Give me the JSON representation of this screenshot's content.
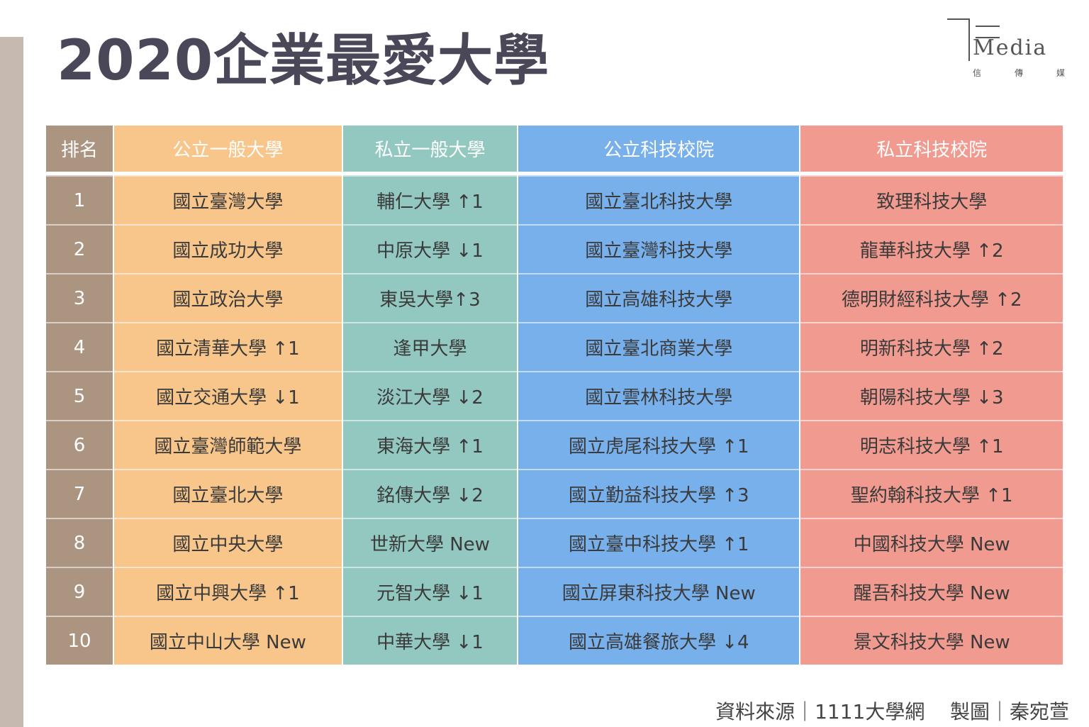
{
  "title": "2020企業最愛大學",
  "logo": {
    "word": "Media",
    "chinese": [
      "信",
      "傳",
      "媒"
    ]
  },
  "colors": {
    "rank": "#ab9480",
    "public_general": "#f8c68a",
    "private_general": "#93c8c0",
    "public_tech": "#78b0ec",
    "private_tech": "#f19b90",
    "title": "#4a4858"
  },
  "table": {
    "headers": [
      "排名",
      "公立一般大學",
      "私立一般大學",
      "公立科技校院",
      "私立科技校院"
    ],
    "rows": [
      [
        "1",
        "國立臺灣大學",
        "輔仁大學 ↑1",
        "國立臺北科技大學",
        "致理科技大學"
      ],
      [
        "2",
        "國立成功大學",
        "中原大學 ↓1",
        "國立臺灣科技大學",
        "龍華科技大學 ↑2"
      ],
      [
        "3",
        "國立政治大學",
        "東吳大學↑3",
        "國立高雄科技大學",
        "德明財經科技大學 ↑2"
      ],
      [
        "4",
        "國立清華大學 ↑1",
        "逢甲大學",
        "國立臺北商業大學",
        "明新科技大學 ↑2"
      ],
      [
        "5",
        "國立交通大學 ↓1",
        "淡江大學 ↓2",
        "國立雲林科技大學",
        "朝陽科技大學 ↓3"
      ],
      [
        "6",
        "國立臺灣師範大學",
        "東海大學 ↑1",
        "國立虎尾科技大學 ↑1",
        "明志科技大學 ↑1"
      ],
      [
        "7",
        "國立臺北大學",
        "銘傳大學 ↓2",
        "國立勤益科技大學 ↑3",
        "聖約翰科技大學 ↑1"
      ],
      [
        "8",
        "國立中央大學",
        "世新大學 New",
        "國立臺中科技大學 ↑1",
        "中國科技大學 New"
      ],
      [
        "9",
        "國立中興大學 ↑1",
        "元智大學 ↓1",
        "國立屏東科技大學 New",
        "醒吾科技大學 New"
      ],
      [
        "10",
        "國立中山大學 New",
        "中華大學 ↓1",
        "國立高雄餐旅大學 ↓4",
        "景文科技大學 New"
      ]
    ]
  },
  "footer": {
    "source": "資料來源｜1111大學網",
    "credit": "製圖｜秦宛萱"
  }
}
